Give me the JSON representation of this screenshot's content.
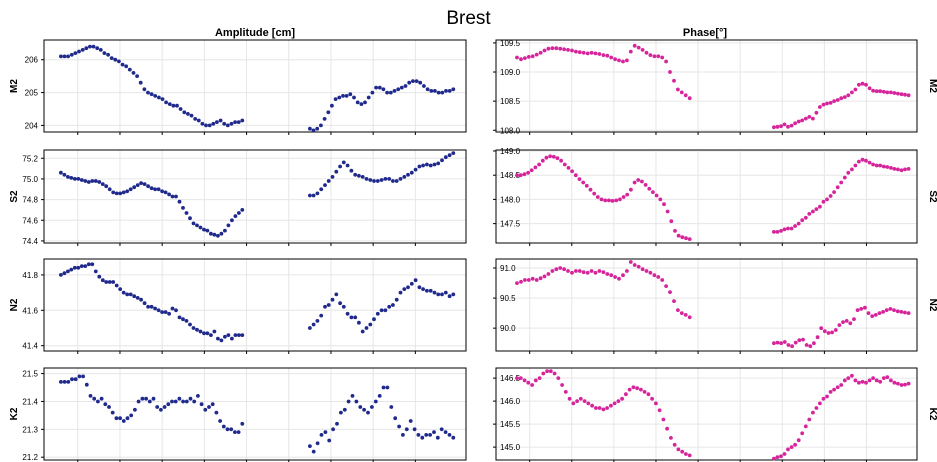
{
  "figure": {
    "title": "Brest",
    "left_column_title": "Amplitude [cm]",
    "right_column_title": "Phase[°]"
  },
  "colors": {
    "amplitude": "#1f2a8c",
    "phase": "#d6249a",
    "grid": "#e6e6e6",
    "frame": "#000000"
  },
  "chart_data": [
    {
      "type": "scatter",
      "panel": "amplitude",
      "ylabel": "M2",
      "ylim": [
        203.8,
        206.6
      ],
      "yticks": [
        204,
        205,
        206
      ],
      "ytick_labels": [
        "204",
        "205",
        "206"
      ],
      "series": [
        {
          "values": [
            206.1,
            206.1,
            206.1,
            206.15,
            206.2,
            206.25,
            206.3,
            206.35,
            206.4,
            206.4,
            206.35,
            206.3,
            206.2,
            206.15,
            206.05,
            206.0,
            205.95,
            205.85,
            205.8,
            205.7,
            205.6,
            205.5,
            205.3,
            205.1,
            205.0,
            204.95,
            204.9,
            204.85,
            204.8,
            204.7,
            204.65,
            204.6,
            204.6,
            204.5,
            204.4,
            204.35,
            204.3,
            204.2,
            204.15,
            204.05,
            204.0,
            204.0,
            204.05,
            204.1,
            204.15,
            204.05,
            204.0,
            204.05,
            204.1,
            204.1,
            204.15
          ]
        },
        {
          "values": [
            203.9,
            203.85,
            203.9,
            204.0,
            204.2,
            204.4,
            204.6,
            204.8,
            204.85,
            204.9,
            204.9,
            204.95,
            204.85,
            204.7,
            204.65,
            204.7,
            204.85,
            205.0,
            205.15,
            205.15,
            205.1,
            205.0,
            205.0,
            205.05,
            205.1,
            205.15,
            205.2,
            205.3,
            205.35,
            205.35,
            205.3,
            205.2,
            205.1,
            205.05,
            205.05,
            205.0,
            205.0,
            205.05,
            205.05,
            205.1
          ]
        }
      ]
    },
    {
      "type": "scatter",
      "panel": "amplitude",
      "ylabel": "S2",
      "ylim": [
        74.38,
        75.28
      ],
      "yticks": [
        74.4,
        74.6,
        74.8,
        75.0,
        75.2
      ],
      "ytick_labels": [
        "74.4",
        "74.6",
        "74.8",
        "75.0",
        "75.2"
      ],
      "series": [
        {
          "values": [
            75.06,
            75.04,
            75.02,
            75.01,
            75.0,
            75.0,
            74.99,
            74.98,
            74.97,
            74.98,
            74.98,
            74.97,
            74.95,
            74.93,
            74.9,
            74.87,
            74.86,
            74.86,
            74.87,
            74.88,
            74.9,
            74.92,
            74.94,
            74.96,
            74.95,
            74.93,
            74.91,
            74.9,
            74.9,
            74.88,
            74.87,
            74.85,
            74.83,
            74.83,
            74.78,
            74.72,
            74.67,
            74.62,
            74.57,
            74.55,
            74.53,
            74.51,
            74.5,
            74.47,
            74.46,
            74.45,
            74.47,
            74.5,
            74.55,
            74.6,
            74.64,
            74.67,
            74.7
          ]
        },
        {
          "values": [
            74.84,
            74.84,
            74.86,
            74.9,
            74.94,
            74.98,
            75.02,
            75.07,
            75.12,
            75.16,
            75.13,
            75.08,
            75.04,
            75.03,
            75.02,
            75.0,
            74.99,
            74.98,
            74.98,
            74.99,
            75.0,
            75.0,
            74.98,
            74.98,
            75.0,
            75.02,
            75.04,
            75.06,
            75.09,
            75.12,
            75.13,
            75.14,
            75.13,
            75.14,
            75.15,
            75.18,
            75.21,
            75.23,
            75.25
          ]
        }
      ]
    },
    {
      "type": "scatter",
      "panel": "amplitude",
      "ylabel": "N2",
      "ylim": [
        41.37,
        41.89
      ],
      "yticks": [
        41.4,
        41.6,
        41.8
      ],
      "ytick_labels": [
        "41.4",
        "41.6",
        "41.8"
      ],
      "series": [
        {
          "values": [
            41.8,
            41.81,
            41.82,
            41.83,
            41.84,
            41.84,
            41.85,
            41.85,
            41.86,
            41.86,
            41.82,
            41.79,
            41.77,
            41.76,
            41.76,
            41.76,
            41.74,
            41.72,
            41.7,
            41.69,
            41.69,
            41.68,
            41.67,
            41.66,
            41.64,
            41.62,
            41.62,
            41.61,
            41.6,
            41.59,
            41.59,
            41.58,
            41.61,
            41.6,
            41.56,
            41.55,
            41.54,
            41.52,
            41.5,
            41.49,
            41.48,
            41.47,
            41.47,
            41.46,
            41.48,
            41.44,
            41.43,
            41.45,
            41.46,
            41.44,
            41.46,
            41.46,
            41.46
          ]
        },
        {
          "values": [
            41.5,
            41.52,
            41.54,
            41.57,
            41.62,
            41.63,
            41.66,
            41.69,
            41.64,
            41.62,
            41.58,
            41.56,
            41.56,
            41.53,
            41.48,
            41.5,
            41.52,
            41.55,
            41.58,
            41.6,
            41.6,
            41.62,
            41.63,
            41.66,
            41.7,
            41.72,
            41.73,
            41.75,
            41.77,
            41.73,
            41.72,
            41.71,
            41.71,
            41.7,
            41.69,
            41.69,
            41.7,
            41.68,
            41.69
          ]
        }
      ]
    },
    {
      "type": "scatter",
      "panel": "amplitude",
      "ylabel": "K2",
      "ylim": [
        21.19,
        21.52
      ],
      "yticks": [
        21.2,
        21.3,
        21.4,
        21.5
      ],
      "ytick_labels": [
        "21.2",
        "21.3",
        "21.4",
        "21.5"
      ],
      "series": [
        {
          "values": [
            21.47,
            21.47,
            21.47,
            21.48,
            21.48,
            21.49,
            21.49,
            21.46,
            21.42,
            21.41,
            21.4,
            21.41,
            21.39,
            21.38,
            21.36,
            21.34,
            21.34,
            21.33,
            21.34,
            21.35,
            21.37,
            21.4,
            21.41,
            21.41,
            21.4,
            21.41,
            21.38,
            21.37,
            21.38,
            21.39,
            21.4,
            21.4,
            21.41,
            21.4,
            21.4,
            21.41,
            21.4,
            21.42,
            21.39,
            21.37,
            21.38,
            21.39,
            21.36,
            21.33,
            21.31,
            21.3,
            21.3,
            21.29,
            21.29,
            21.32
          ]
        },
        {
          "values": [
            21.24,
            21.22,
            21.25,
            21.28,
            21.29,
            21.26,
            21.3,
            21.32,
            21.36,
            21.37,
            21.4,
            21.42,
            21.4,
            21.38,
            21.37,
            21.36,
            21.38,
            21.4,
            21.42,
            21.45,
            21.45,
            21.38,
            21.34,
            21.31,
            21.28,
            21.3,
            21.33,
            21.3,
            21.28,
            21.27,
            21.28,
            21.28,
            21.29,
            21.27,
            21.3,
            21.29,
            21.28,
            21.27
          ]
        }
      ]
    },
    {
      "type": "scatter",
      "panel": "phase",
      "ylabel": "M2",
      "ylim": [
        107.97,
        109.55
      ],
      "yticks": [
        108.0,
        108.5,
        109.0,
        109.5
      ],
      "ytick_labels": [
        "108.0",
        "108.5",
        "109.0",
        "109.5"
      ],
      "series": [
        {
          "values": [
            109.25,
            109.22,
            109.24,
            109.26,
            109.27,
            109.3,
            109.33,
            109.37,
            109.4,
            109.41,
            109.41,
            109.4,
            109.39,
            109.38,
            109.37,
            109.35,
            109.34,
            109.33,
            109.32,
            109.33,
            109.32,
            109.31,
            109.29,
            109.28,
            109.25,
            109.22,
            109.2,
            109.18,
            109.2,
            109.35,
            109.45,
            109.42,
            109.38,
            109.33,
            109.29,
            109.27,
            109.27,
            109.25,
            109.18,
            109.0,
            108.85,
            108.7,
            108.65,
            108.6,
            108.55
          ]
        },
        {
          "values": [
            108.05,
            108.06,
            108.07,
            108.1,
            108.06,
            108.08,
            108.12,
            108.15,
            108.17,
            108.2,
            108.23,
            108.2,
            108.3,
            108.4,
            108.44,
            108.46,
            108.47,
            108.5,
            108.52,
            108.55,
            108.57,
            108.6,
            108.65,
            108.7,
            108.78,
            108.8,
            108.78,
            108.72,
            108.68,
            108.67,
            108.67,
            108.66,
            108.65,
            108.65,
            108.64,
            108.63,
            108.62,
            108.61,
            108.6
          ]
        }
      ]
    },
    {
      "type": "scatter",
      "panel": "phase",
      "ylabel": "S2",
      "ylim": [
        147.1,
        149.02
      ],
      "yticks": [
        147.5,
        148.0,
        148.5,
        149.0
      ],
      "ytick_labels": [
        "147.5",
        "148.0",
        "148.5",
        "149.0"
      ],
      "series": [
        {
          "values": [
            148.5,
            148.5,
            148.52,
            148.55,
            148.6,
            148.66,
            148.72,
            148.8,
            148.86,
            148.89,
            148.88,
            148.85,
            148.8,
            148.72,
            148.65,
            148.58,
            148.5,
            148.42,
            148.35,
            148.28,
            148.2,
            148.12,
            148.05,
            148.0,
            147.98,
            147.98,
            147.97,
            147.98,
            148.0,
            148.05,
            148.1,
            148.2,
            148.35,
            148.4,
            148.37,
            148.3,
            148.22,
            148.15,
            148.08,
            148.0,
            147.9,
            147.75,
            147.55,
            147.35,
            147.25,
            147.22,
            147.2,
            147.18
          ]
        },
        {
          "values": [
            147.33,
            147.33,
            147.35,
            147.38,
            147.4,
            147.4,
            147.45,
            147.5,
            147.57,
            147.62,
            147.7,
            147.75,
            147.8,
            147.85,
            147.95,
            148.0,
            148.07,
            148.15,
            148.25,
            148.35,
            148.45,
            148.55,
            148.62,
            148.7,
            148.78,
            148.82,
            148.8,
            148.76,
            148.72,
            148.7,
            148.7,
            148.68,
            148.67,
            148.65,
            148.63,
            148.62,
            148.6,
            148.62,
            148.63
          ]
        }
      ]
    },
    {
      "type": "scatter",
      "panel": "phase",
      "ylabel": "N2",
      "ylim": [
        89.62,
        91.15
      ],
      "yticks": [
        90.0,
        90.5,
        91.0
      ],
      "ytick_labels": [
        "90.0",
        "90.5",
        "91.0"
      ],
      "series": [
        {
          "values": [
            90.75,
            90.77,
            90.8,
            90.8,
            90.82,
            90.8,
            90.83,
            90.86,
            90.9,
            90.95,
            90.98,
            91.0,
            90.98,
            90.95,
            90.92,
            90.95,
            90.95,
            90.93,
            90.92,
            90.95,
            90.92,
            90.95,
            90.93,
            90.9,
            90.88,
            90.85,
            90.82,
            90.88,
            90.95,
            91.1,
            91.05,
            91.02,
            90.98,
            90.95,
            90.92,
            90.88,
            90.85,
            90.8,
            90.7,
            90.6,
            90.45,
            90.3,
            90.25,
            90.22,
            90.18
          ]
        },
        {
          "values": [
            89.75,
            89.76,
            89.75,
            89.77,
            89.72,
            89.7,
            89.76,
            89.8,
            89.81,
            89.72,
            89.7,
            89.75,
            89.85,
            90.0,
            89.95,
            89.92,
            89.93,
            89.97,
            90.05,
            90.1,
            90.12,
            90.08,
            90.15,
            90.3,
            90.32,
            90.34,
            90.25,
            90.2,
            90.22,
            90.25,
            90.27,
            90.3,
            90.32,
            90.3,
            90.28,
            90.27,
            90.26,
            90.25
          ]
        }
      ]
    },
    {
      "type": "scatter",
      "panel": "phase",
      "ylabel": "K2",
      "ylim": [
        144.72,
        146.72
      ],
      "yticks": [
        145.0,
        145.5,
        146.0,
        146.5
      ],
      "ytick_labels": [
        "145.0",
        "145.5",
        "146.0",
        "146.5"
      ],
      "series": [
        {
          "values": [
            146.5,
            146.5,
            146.45,
            146.4,
            146.35,
            146.45,
            146.5,
            146.6,
            146.65,
            146.65,
            146.6,
            146.5,
            146.35,
            146.2,
            146.05,
            145.95,
            146.0,
            146.05,
            146.0,
            145.95,
            145.9,
            145.85,
            145.85,
            145.82,
            145.85,
            145.9,
            145.95,
            146.0,
            146.05,
            146.15,
            146.25,
            146.3,
            146.28,
            146.25,
            146.2,
            146.15,
            146.05,
            145.95,
            145.8,
            145.6,
            145.4,
            145.2,
            145.05,
            144.95,
            144.9,
            144.85,
            144.82
          ]
        },
        {
          "values": [
            144.75,
            144.78,
            144.8,
            144.85,
            144.95,
            145.0,
            145.05,
            145.15,
            145.3,
            145.45,
            145.6,
            145.75,
            145.85,
            145.95,
            146.05,
            146.1,
            146.2,
            146.25,
            146.3,
            146.35,
            146.45,
            146.5,
            146.55,
            146.45,
            146.4,
            146.42,
            146.4,
            146.45,
            146.5,
            146.45,
            146.42,
            146.5,
            146.52,
            146.45,
            146.4,
            146.38,
            146.35,
            146.36,
            146.38
          ]
        }
      ]
    }
  ]
}
